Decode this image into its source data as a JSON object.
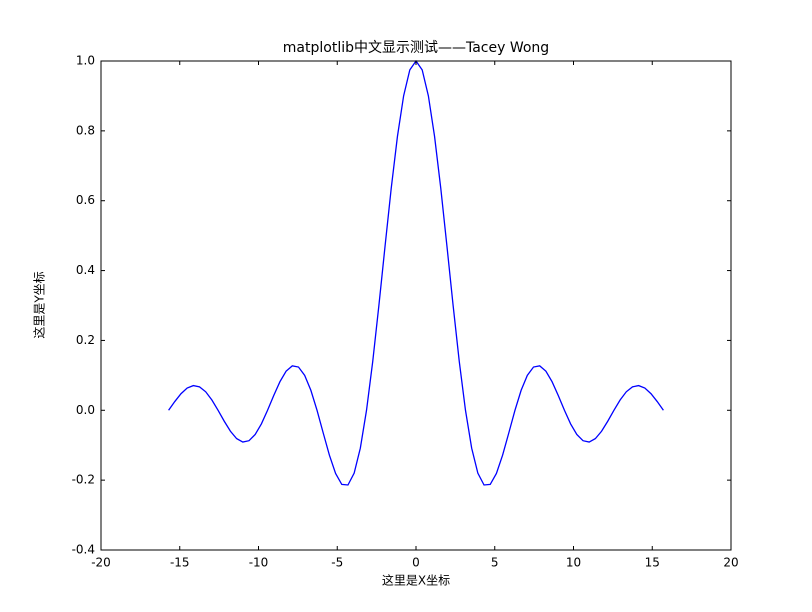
{
  "chart_data": {
    "type": "line",
    "title": "matplotlib中文显示测试——Tacey Wong",
    "x_label": "这里是X坐标",
    "y_label": "这里是Y坐标",
    "x": [
      -15.708,
      -15.3153,
      -14.9226,
      -14.5299,
      -14.1372,
      -13.7445,
      -13.3518,
      -12.9591,
      -12.5664,
      -12.1737,
      -11.781,
      -11.3883,
      -10.9956,
      -10.6029,
      -10.2102,
      -9.8175,
      -9.4248,
      -9.0321,
      -8.6394,
      -8.2467,
      -7.854,
      -7.4613,
      -7.0686,
      -6.6759,
      -6.2832,
      -5.8905,
      -5.4978,
      -5.1051,
      -4.7124,
      -4.3197,
      -3.927,
      -3.5343,
      -3.1416,
      -2.7489,
      -2.3562,
      -1.9635,
      -1.5708,
      -1.1781,
      -0.7854,
      -0.3927,
      0,
      0.3927,
      0.7854,
      1.1781,
      1.5708,
      1.9635,
      2.3562,
      2.7489,
      3.1416,
      3.5343,
      3.927,
      4.3197,
      4.7124,
      5.1051,
      5.4978,
      5.8905,
      6.2832,
      6.6759,
      7.0686,
      7.4613,
      7.854,
      8.2467,
      8.6394,
      9.0321,
      9.4248,
      9.8175,
      10.2102,
      10.6029,
      10.9956,
      11.3883,
      11.781,
      12.1737,
      12.5664,
      12.9591,
      13.3518,
      13.7445,
      14.1372,
      14.5299,
      14.9226,
      15.3153,
      15.708
    ],
    "series": [
      {
        "color": "#0000ff",
        "values": [
          0,
          0.025,
          0.0474,
          0.0636,
          0.0707,
          0.0672,
          0.053,
          0.0295,
          0,
          -0.0314,
          -0.06,
          -0.0811,
          -0.0909,
          -0.0871,
          -0.0693,
          -0.039,
          0,
          0.0424,
          0.0818,
          0.112,
          0.1273,
          0.1238,
          0.1,
          0.0573,
          0,
          -0.065,
          -0.1286,
          -0.181,
          -0.2122,
          -0.2139,
          -0.1801,
          -0.1083,
          0,
          0.1392,
          0.3001,
          0.4705,
          0.6366,
          0.7842,
          0.9003,
          0.9745,
          1,
          0.9745,
          0.9003,
          0.7842,
          0.6366,
          0.4705,
          0.3001,
          0.1392,
          0,
          -0.1083,
          -0.1801,
          -0.2139,
          -0.2122,
          -0.181,
          -0.1286,
          -0.065,
          0,
          0.0573,
          0.1,
          0.1238,
          0.1273,
          0.112,
          0.0818,
          0.0424,
          0,
          -0.039,
          -0.0693,
          -0.0871,
          -0.0909,
          -0.0811,
          -0.06,
          -0.0314,
          0,
          0.0295,
          0.053,
          0.0672,
          0.0707,
          0.0636,
          0.0474,
          0.025,
          0
        ]
      }
    ],
    "xlim": [
      -20,
      20
    ],
    "xticks": [
      -20,
      -15,
      -10,
      -5,
      0,
      5,
      10,
      15,
      20
    ],
    "ylim": [
      -0.4,
      1.0
    ],
    "yticks": [
      -0.4,
      -0.2,
      {
        "value": 0,
        "label": "0.0"
      },
      0.2,
      0.4,
      0.6,
      0.8,
      {
        "value": 1,
        "label": "1.0"
      }
    ]
  }
}
